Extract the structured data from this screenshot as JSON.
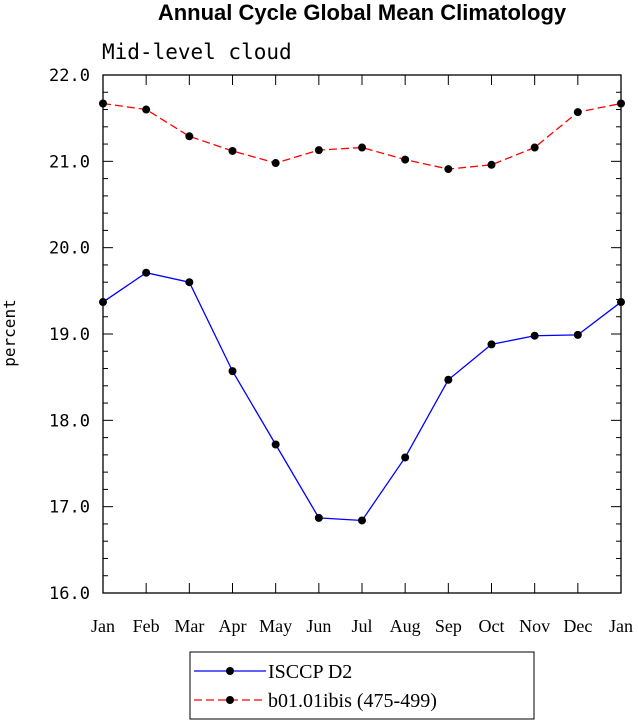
{
  "chart_data": {
    "type": "line",
    "title": "Annual Cycle Global Mean Climatology",
    "subtitle": "Mid-level cloud",
    "xlabel": "",
    "ylabel": "percent",
    "categories": [
      "Jan",
      "Feb",
      "Mar",
      "Apr",
      "May",
      "Jun",
      "Jul",
      "Aug",
      "Sep",
      "Oct",
      "Nov",
      "Dec",
      "Jan"
    ],
    "ylim": [
      16.0,
      22.0
    ],
    "yticks": [
      16.0,
      17.0,
      18.0,
      19.0,
      20.0,
      21.0,
      22.0
    ],
    "ytick_labels": [
      "16.0",
      "17.0",
      "18.0",
      "19.0",
      "20.0",
      "21.0",
      "22.0"
    ],
    "grid": false,
    "legend_position": "bottom",
    "series": [
      {
        "name": "ISCCP D2",
        "color": "#0000ff",
        "dash": "solid",
        "marker": "circle",
        "values": [
          19.37,
          19.71,
          19.6,
          18.57,
          17.72,
          16.87,
          16.84,
          17.57,
          18.47,
          18.88,
          18.98,
          18.99,
          19.37
        ]
      },
      {
        "name": "b01.01ibis (475-499)",
        "color": "#ff0000",
        "dash": "dashed",
        "marker": "circle",
        "values": [
          21.67,
          21.6,
          21.29,
          21.12,
          20.98,
          21.13,
          21.16,
          21.02,
          20.91,
          20.96,
          21.16,
          21.57,
          21.67
        ]
      }
    ]
  }
}
